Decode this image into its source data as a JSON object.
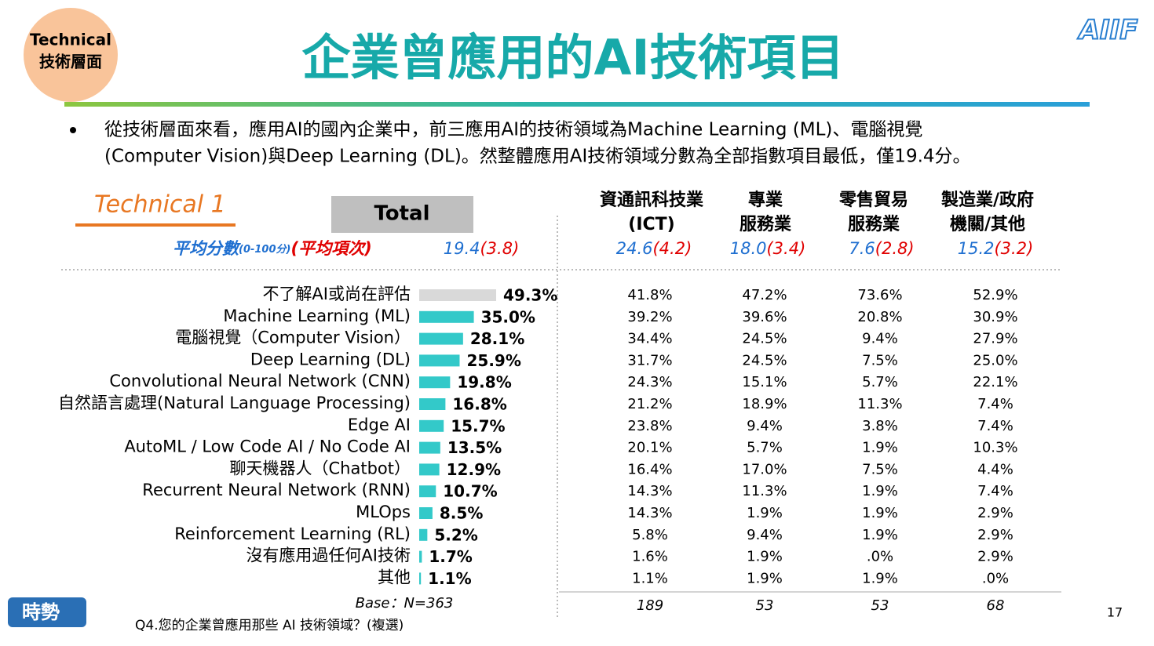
{
  "header": {
    "badge": [
      "Technical",
      "技術層面"
    ],
    "title": "企業曾應用的AI技術項目",
    "logo": "AIIF"
  },
  "bullet": [
    "從技術層面來看，應用AI的國內企業中，前三應用AI的技術領域為Machine Learning (ML)、電腦視覺",
    "(Computer Vision)與Deep Learning (DL)。然整體應用AI技術領域分數為全部指數項目最低，僅19.4分。"
  ],
  "section": "Technical 1",
  "total_header": "Total",
  "columns": [
    [
      "資通訊科技業",
      "(ICT)"
    ],
    [
      "專業",
      "服務業"
    ],
    [
      "零售貿易",
      "服務業"
    ],
    [
      "製造業/政府",
      "機關/其他"
    ]
  ],
  "score_label": {
    "main": "平均分數",
    "range": "(0-100分)",
    "rank": "(平均項次)"
  },
  "scores": [
    {
      "score": "19.4",
      "rank": "(3.8)"
    },
    {
      "score": "24.6",
      "rank": "(4.2)"
    },
    {
      "score": "18.0",
      "rank": "(3.4)"
    },
    {
      "score": "7.6",
      "rank": "(2.8)"
    },
    {
      "score": "15.2",
      "rank": "(3.2)"
    }
  ],
  "chart_data": {
    "type": "hbar",
    "categories": [
      "不了解AI或尚在評估",
      "Machine Learning (ML)",
      "電腦視覺（Computer Vision）",
      "Deep Learning (DL)",
      "Convolutional Neural Network (CNN)",
      "自然語言處理(Natural Language Processing)",
      "Edge AI",
      "AutoML / Low Code AI  / No Code AI",
      "聊天機器人（Chatbot）",
      "Recurrent Neural Network (RNN)",
      "MLOps",
      "Reinforcement Learning (RL)",
      "沒有應用過任何AI技術",
      "其他"
    ],
    "values": [
      49.3,
      35.0,
      28.1,
      25.9,
      19.8,
      16.8,
      15.7,
      13.5,
      12.9,
      10.7,
      8.5,
      5.2,
      1.7,
      1.1
    ],
    "value_labels": [
      "49.3%",
      "35.0%",
      "28.1%",
      "25.9%",
      "19.8%",
      "16.8%",
      "15.7%",
      "13.5%",
      "12.9%",
      "10.7%",
      "8.5%",
      "5.2%",
      "1.7%",
      "1.1%"
    ],
    "colors": [
      "#d9d9d9",
      "#33c9c9",
      "#33c9c9",
      "#33c9c9",
      "#33c9c9",
      "#33c9c9",
      "#33c9c9",
      "#33c9c9",
      "#33c9c9",
      "#33c9c9",
      "#33c9c9",
      "#33c9c9",
      "#33c9c9",
      "#33c9c9"
    ]
  },
  "table": {
    "rows": [
      [
        "41.8%",
        "47.2%",
        "73.6%",
        "52.9%"
      ],
      [
        "39.2%",
        "39.6%",
        "20.8%",
        "30.9%"
      ],
      [
        "34.4%",
        "24.5%",
        "9.4%",
        "27.9%"
      ],
      [
        "31.7%",
        "24.5%",
        "7.5%",
        "25.0%"
      ],
      [
        "24.3%",
        "15.1%",
        "5.7%",
        "22.1%"
      ],
      [
        "21.2%",
        "18.9%",
        "11.3%",
        "7.4%"
      ],
      [
        "23.8%",
        "9.4%",
        "3.8%",
        "7.4%"
      ],
      [
        "20.1%",
        "5.7%",
        "1.9%",
        "10.3%"
      ],
      [
        "16.4%",
        "17.0%",
        "7.5%",
        "4.4%"
      ],
      [
        "14.3%",
        "11.3%",
        "1.9%",
        "7.4%"
      ],
      [
        "14.3%",
        "1.9%",
        "1.9%",
        "2.9%"
      ],
      [
        "5.8%",
        "9.4%",
        "1.9%",
        "2.9%"
      ],
      [
        "1.6%",
        "1.9%",
        ".0%",
        "2.9%"
      ],
      [
        "1.1%",
        "1.9%",
        "1.9%",
        ".0%"
      ]
    ],
    "base": [
      "Base：N=363",
      "189",
      "53",
      "53",
      "68"
    ]
  },
  "footnote": "Q4.您的企業曾應用那些 AI 技術領域？(複選)",
  "brand": "時勢",
  "page": "17"
}
